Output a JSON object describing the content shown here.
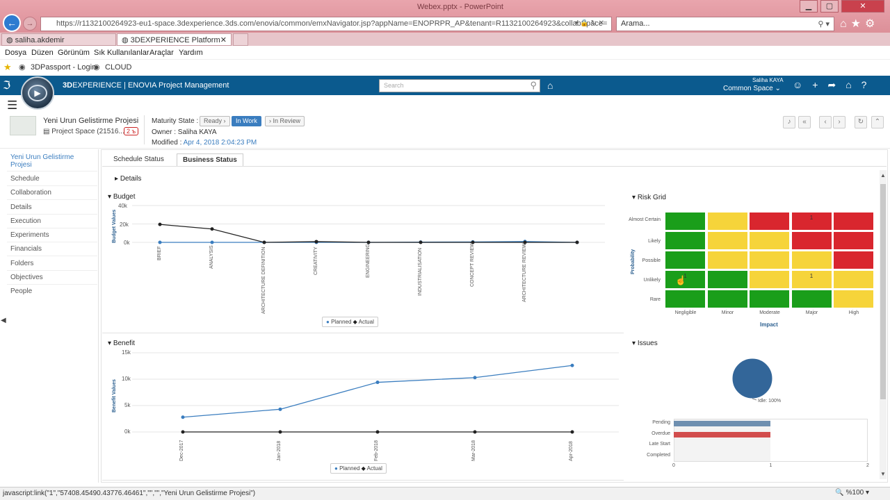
{
  "browser": {
    "window_title": "Webex.pptx - PowerPoint",
    "url": "https://r1132100264923-eu1-space.3dexperience.3ds.com/enovia/common/emxNavigator.jsp?appName=ENOPRPR_AP&tenant=R1132100264923&collabSpace=",
    "search_placeholder": "Arama...",
    "tabs": [
      {
        "label": "saliha.akdemir"
      },
      {
        "label": "3DEXPERIENCE Platform"
      }
    ],
    "menu": [
      "Dosya",
      "Düzen",
      "Görünüm",
      "Sık Kullanılanlar",
      "Araçlar",
      "Yardım"
    ],
    "favorites": [
      "3DPassport - Login",
      "CLOUD"
    ],
    "status_text": "javascript:link(\"1\",\"57408.45490.43776.46461\",\"\",\"\",\"Yeni Urun Gelistirme Projesi\")",
    "zoom": "%100"
  },
  "app": {
    "brand_bold": "3D",
    "brand_rest": "EXPERIENCE | ENOVIA Project Management",
    "search_placeholder": "Search",
    "user": "Saliha KAYA",
    "space": "Common Space ⌄"
  },
  "project": {
    "name": "Yeni Urun Gelistirme Projesi",
    "space": "Project Space (21516...",
    "badge": "2 ъ",
    "maturity_label": "Maturity State :",
    "states": [
      "Ready ›",
      "In Work",
      "› In Review"
    ],
    "owner": "Owner : Saliha KAYA",
    "modified_label": "Modified : ",
    "modified_value": "Apr 4, 2018 2:04:23 PM"
  },
  "nav": [
    "Yeni Urun Gelistirme Projesi",
    "Schedule",
    "Collaboration",
    "Details",
    "Execution",
    "Experiments",
    "Financials",
    "Folders",
    "Objectives",
    "People"
  ],
  "tabs": [
    "Schedule Status",
    "Business Status"
  ],
  "sections": {
    "details": "Details",
    "budget": "Budget",
    "benefit": "Benefit",
    "risk": "Risk Grid",
    "issues": "Issues"
  },
  "chart_data": [
    {
      "type": "line",
      "title": "Budget",
      "ylabel": "Budget Values",
      "categories": [
        "BRIEF",
        "ANALYSIS",
        "ARCHITECTURE DEFINITION",
        "CREATIVITY",
        "ENGINEERING",
        "INDUSTRIALISATION",
        "CONCEPT REVIEW",
        "ARCHITECTURE REVIEW",
        ""
      ],
      "yticks": [
        "40k",
        "20k",
        "0k"
      ],
      "ylim": [
        0,
        40000
      ],
      "series": [
        {
          "name": "Planned",
          "color": "#3a7dbf",
          "values": [
            0,
            0,
            0,
            0,
            0,
            300,
            500,
            900,
            0
          ]
        },
        {
          "name": "Actual",
          "color": "#222222",
          "values": [
            19500,
            14500,
            0,
            800,
            0,
            0,
            0,
            0,
            0
          ]
        }
      ]
    },
    {
      "type": "line",
      "title": "Benefit",
      "ylabel": "Benefit Values",
      "categories": [
        "Dec-2017",
        "Jan-2018",
        "Feb-2018",
        "Mar-2018",
        "Apr-2018"
      ],
      "yticks": [
        "15k",
        "10k",
        "5k",
        "0k"
      ],
      "ylim": [
        0,
        15000
      ],
      "series": [
        {
          "name": "Planned",
          "color": "#3a7dbf",
          "values": [
            2800,
            4300,
            9400,
            10300,
            12600
          ]
        },
        {
          "name": "Actual",
          "color": "#222222",
          "values": [
            0,
            0,
            0,
            0,
            0
          ]
        }
      ]
    },
    {
      "type": "heatmap",
      "title": "Risk Grid",
      "ylabel": "Probability",
      "xlabel": "Impact",
      "rows": [
        "Almost Certain",
        "Likely",
        "Possible",
        "Unlikely",
        "Rare"
      ],
      "cols": [
        "Negligible",
        "Minor",
        "Moderate",
        "Major",
        "High"
      ],
      "colors": [
        [
          "#1a9e1a",
          "#f6d43a",
          "#d9262e",
          "#d9262e",
          "#d9262e"
        ],
        [
          "#1a9e1a",
          "#f6d43a",
          "#f6d43a",
          "#d9262e",
          "#d9262e"
        ],
        [
          "#1a9e1a",
          "#f6d43a",
          "#f6d43a",
          "#f6d43a",
          "#d9262e"
        ],
        [
          "#1a9e1a",
          "#1a9e1a",
          "#f6d43a",
          "#f6d43a",
          "#f6d43a"
        ],
        [
          "#1a9e1a",
          "#1a9e1a",
          "#1a9e1a",
          "#1a9e1a",
          "#f6d43a"
        ]
      ],
      "values": [
        [
          "",
          "",
          "",
          "1",
          ""
        ],
        [
          "",
          "",
          "",
          "",
          ""
        ],
        [
          "",
          "",
          "",
          "",
          ""
        ],
        [
          "1",
          "",
          "",
          "1",
          ""
        ],
        [
          "",
          "",
          "",
          "",
          ""
        ]
      ]
    },
    {
      "type": "pie",
      "title": "Issues",
      "slices": [
        {
          "name": "Idle",
          "value": 100,
          "label": "Idle: 100%",
          "color": "#336699"
        }
      ]
    },
    {
      "type": "bar",
      "categories": [
        "Pending",
        "Overdue",
        "Late Start",
        "Completed"
      ],
      "values": [
        1,
        1,
        0,
        0
      ],
      "colors": [
        "#336699",
        "#cc0000",
        "#cccccc",
        "#cccccc"
      ],
      "xticks": [
        "0",
        "1",
        "2"
      ],
      "xlim": [
        0,
        2
      ]
    }
  ]
}
